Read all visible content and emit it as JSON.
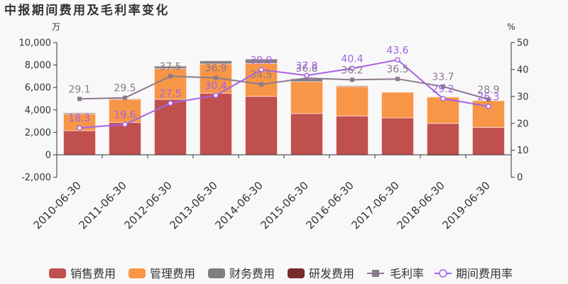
{
  "title": "中报期间费用及毛利率变化",
  "chart_data": {
    "type": "bar",
    "title": "中报期间费用及毛利率变化",
    "xlabel": "",
    "categories": [
      "2010-06-30",
      "2011-06-30",
      "2012-06-30",
      "2013-06-30",
      "2014-06-30",
      "2015-06-30",
      "2016-06-30",
      "2017-06-30",
      "2018-06-30",
      "2019-06-30"
    ],
    "left_axis": {
      "unit": "万",
      "ylim": [
        -2000,
        10000
      ],
      "ticks": [
        10000,
        8000,
        6000,
        4000,
        2000,
        0,
        -2000
      ],
      "tick_labels": [
        "10,000",
        "8,000",
        "6,000",
        "4,000",
        "2,000",
        "0",
        "-2,000"
      ]
    },
    "right_axis": {
      "unit": "%",
      "ylim": [
        0,
        50
      ],
      "ticks": [
        50,
        40,
        30,
        20,
        10,
        0
      ],
      "tick_labels": [
        "50",
        "40",
        "30",
        "20",
        "10",
        "0"
      ]
    },
    "series": [
      {
        "name": "销售费用",
        "type": "bar",
        "stack": "expenses",
        "axis": "left",
        "color": "#c0504d",
        "values": [
          2150,
          2890,
          4940,
          5490,
          5210,
          3670,
          3460,
          3290,
          2800,
          2440
        ]
      },
      {
        "name": "管理费用",
        "type": "bar",
        "stack": "expenses",
        "axis": "left",
        "color": "#f79646",
        "values": [
          1480,
          2050,
          2740,
          2610,
          2940,
          2850,
          2620,
          2280,
          2340,
          2380
        ]
      },
      {
        "name": "财务费用",
        "type": "bar",
        "stack": "expenses",
        "axis": "left",
        "color": "#7f7f7f",
        "values": [
          100,
          60,
          220,
          270,
          380,
          250,
          80,
          0,
          -80,
          0
        ]
      },
      {
        "name": "研发费用",
        "type": "bar",
        "stack": "expenses",
        "axis": "left",
        "color": "#772c2a",
        "values": [
          0,
          0,
          0,
          0,
          0,
          0,
          0,
          0,
          0,
          0
        ]
      },
      {
        "name": "毛利率",
        "type": "line",
        "axis": "right",
        "marker": "square",
        "color": "#8b7a8c",
        "values": [
          29.1,
          29.5,
          37.5,
          36.9,
          34.5,
          36.8,
          36.2,
          36.5,
          33.7,
          28.9
        ],
        "labels": [
          "29.1",
          "29.5",
          "37.5",
          "36.9",
          "34.5",
          "36.8",
          "36.2",
          "36.5",
          "33.7",
          "28.9"
        ]
      },
      {
        "name": "期间费用率",
        "type": "line",
        "axis": "right",
        "marker": "hollow-circle",
        "color": "#a563e6",
        "values": [
          18.3,
          19.6,
          27.5,
          30.4,
          39.9,
          37.8,
          40.4,
          43.6,
          29.2,
          26.3
        ],
        "labels": [
          "18.3",
          "19.6",
          "27.5",
          "30.4",
          "39.9",
          "37.8",
          "40.4",
          "43.6",
          "29.2",
          "26.3"
        ]
      }
    ],
    "legend_position": "bottom",
    "grid": false
  }
}
